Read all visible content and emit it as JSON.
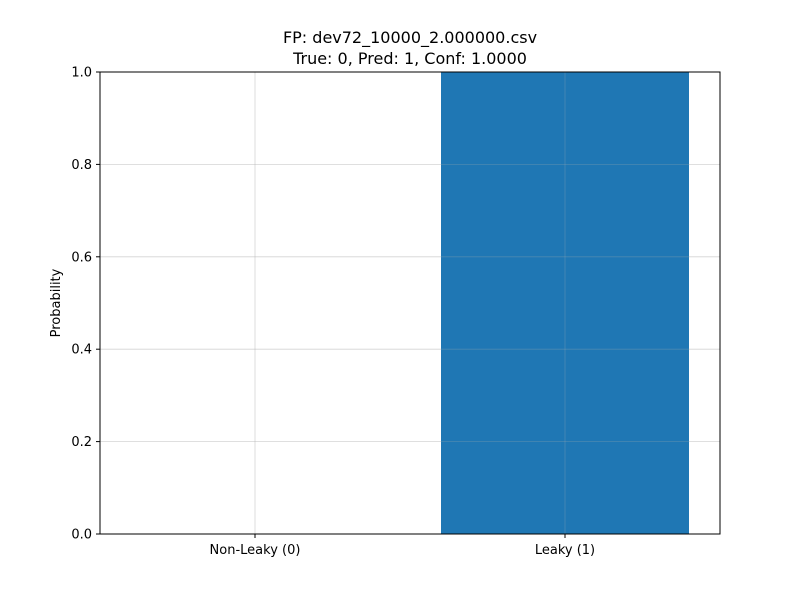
{
  "chart_data": {
    "type": "bar",
    "title_line1": "FP: dev72_10000_2.000000.csv",
    "title_line2": "True: 0, Pred: 1, Conf: 1.0000",
    "xlabel": "",
    "ylabel": "Probability",
    "categories": [
      "Non-Leaky (0)",
      "Leaky (1)"
    ],
    "values": [
      0.0,
      1.0
    ],
    "ylim": [
      0,
      1
    ],
    "yticks": [
      "0.0",
      "0.2",
      "0.4",
      "0.6",
      "0.8",
      "1.0"
    ],
    "grid": true,
    "bar_color": "#1f77b4"
  }
}
